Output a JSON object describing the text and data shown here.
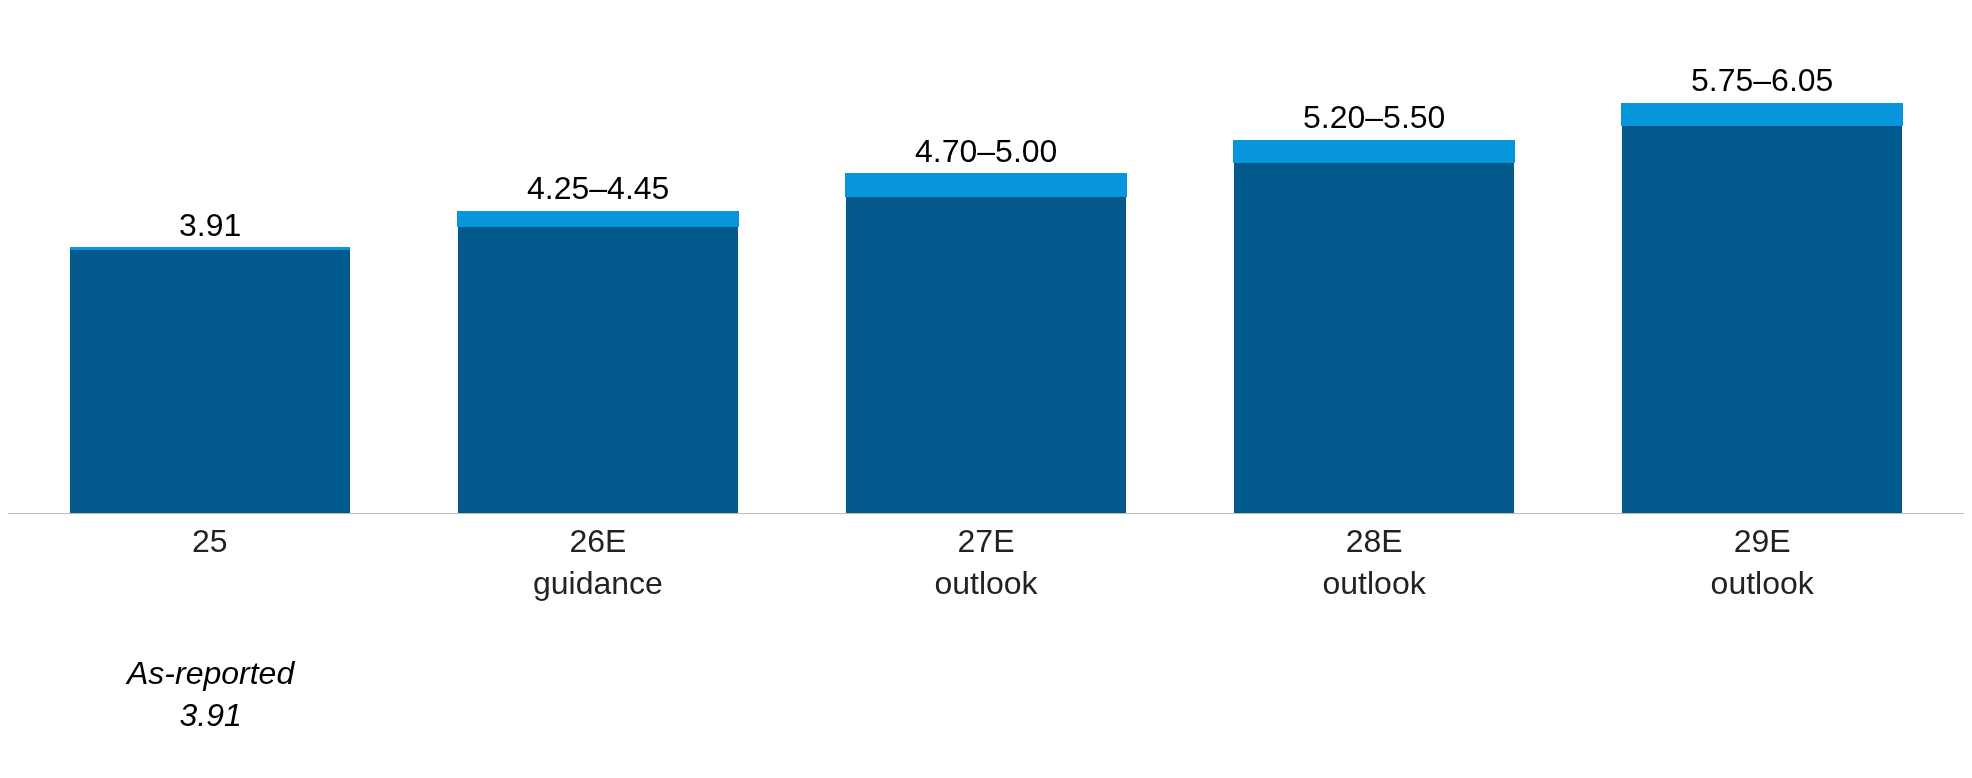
{
  "chart_data": {
    "type": "bar",
    "stacked": true,
    "categories": [
      "25",
      "26E\nguidance",
      "27E\noutlook",
      "28E\noutlook",
      "29E\noutlook"
    ],
    "series": [
      {
        "color": "#02598c",
        "values": [
          3.91,
          4.25,
          4.7,
          5.2,
          5.75
        ],
        "value_labels": [
          "3.91",
          "4.25–4.45",
          "4.70–5.00",
          "5.20–5.50",
          "5.75–6.05"
        ]
      },
      {
        "color": "#0796dc",
        "values": [
          0,
          0.2,
          0.3,
          0.3,
          0.3
        ]
      }
    ],
    "annotations": [
      "As-reported\n3.91"
    ]
  }
}
